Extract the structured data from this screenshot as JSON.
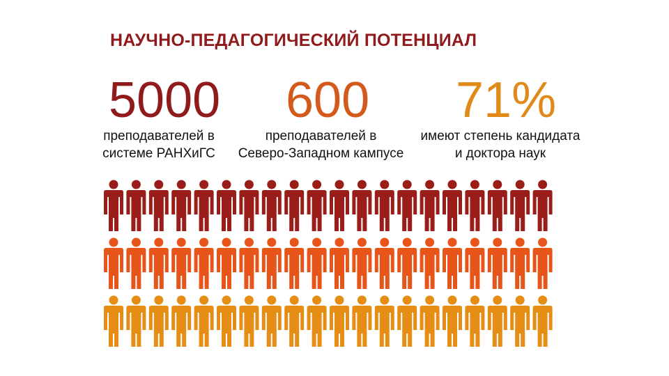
{
  "title": "НАУЧНО-ПЕДАГОГИЧЕСКИЙ ПОТЕНЦИАЛ",
  "stats": [
    {
      "number": "5000",
      "line1": "преподавателей в",
      "line2": "системе РАНХиГС",
      "color": "#8f1b1d"
    },
    {
      "number": "600",
      "line1": "преподавателей в",
      "line2": "Северо-Западном кампусе",
      "color": "#d45a1c"
    },
    {
      "number": "71%",
      "line1": "имеют степень кандидата",
      "line2": "и доктора наук",
      "color": "#e08a1a"
    }
  ],
  "people_rows": [
    {
      "color": "#9a1d1a",
      "count": 20
    },
    {
      "color": "#e8551a",
      "count": 20
    },
    {
      "color": "#e58d14",
      "count": 20
    }
  ]
}
